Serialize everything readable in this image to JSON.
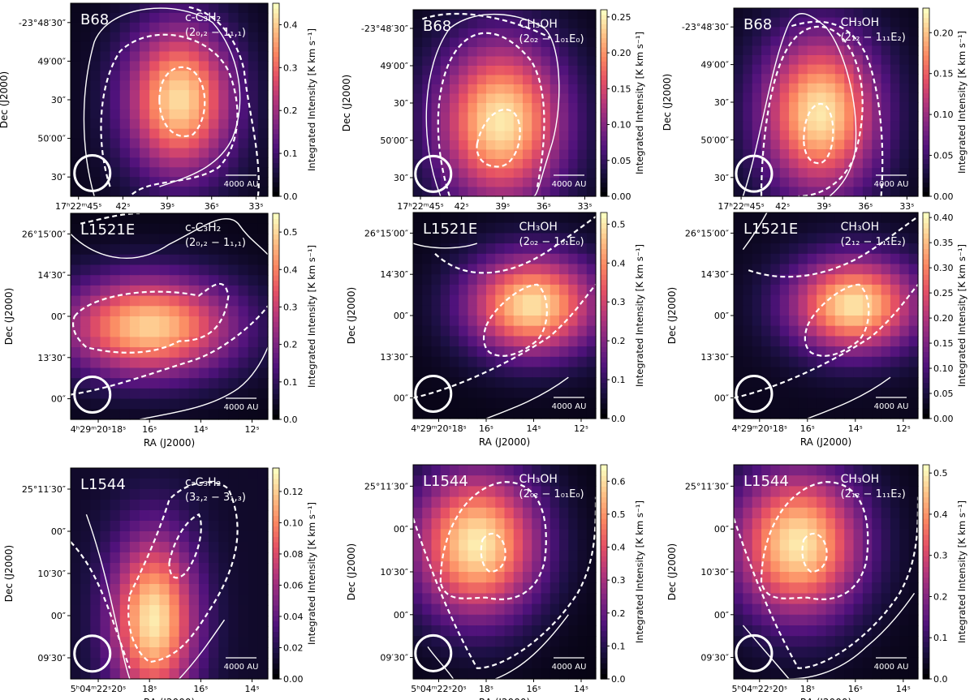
{
  "figure": {
    "description_note": ""
  },
  "colorbar_label": "Integrated Intensity [K km s⁻¹]",
  "xlabel": "RA (J2000)",
  "ylabel": "Dec (J2000)",
  "scalebar_label": "4000 AU",
  "colormap": [
    "#000004",
    "#1c1044",
    "#4f127b",
    "#812581",
    "#b5367a",
    "#e55064",
    "#fb8761",
    "#fec287",
    "#fcfdbf"
  ],
  "chart_data": [
    {
      "type": "heatmap",
      "row": 0,
      "col": 0,
      "source": "B68",
      "line_name": "c-C₃H₂",
      "transition": "(2₀,₂ − 1₁,₁)",
      "cbar_ticks": [
        "0.0",
        "0.1",
        "0.2",
        "0.3",
        "0.4"
      ],
      "vmin": 0.0,
      "vmax": 0.45,
      "xticks": [
        "17ʰ22ᵐ45ˢ",
        "42ˢ",
        "39ˢ",
        "36ˢ",
        "33ˢ"
      ],
      "yticks": [
        "-23°48′30″",
        "49′00″",
        "30″",
        "50′00″",
        "30″"
      ],
      "peak": [
        0.55,
        0.5
      ],
      "sigma": [
        0.19,
        0.27
      ],
      "peak_value": 0.42,
      "floor": 0.02
    },
    {
      "type": "heatmap",
      "row": 0,
      "col": 1,
      "source": "B68",
      "line_name": "CH₃OH",
      "transition": "(2₀₂ − 1₀₁E₀)",
      "cbar_ticks": [
        "0.00",
        "0.05",
        "0.10",
        "0.15",
        "0.20",
        "0.25"
      ],
      "vmin": 0.0,
      "vmax": 0.26,
      "xticks": [
        "17ʰ22ᵐ45ˢ",
        "42ˢ",
        "39ˢ",
        "36ˢ",
        "33ˢ"
      ],
      "yticks": [
        "-23°48′30″",
        "49′00″",
        "30″",
        "50′00″",
        "30″"
      ],
      "peak": [
        0.48,
        0.6
      ],
      "sigma": [
        0.24,
        0.3
      ],
      "peak_value": 0.25,
      "floor": 0.01
    },
    {
      "type": "heatmap",
      "row": 0,
      "col": 2,
      "source": "B68",
      "line_name": "CH₃OH",
      "transition": "(2₁₂ − 1₁₁E₂)",
      "cbar_ticks": [
        "0.00",
        "0.05",
        "0.10",
        "0.15",
        "0.20"
      ],
      "vmin": 0.0,
      "vmax": 0.23,
      "xticks": [
        "17ʰ22ᵐ45ˢ",
        "42ˢ",
        "39ˢ",
        "36ˢ",
        "33ˢ"
      ],
      "yticks": [
        "-23°48′30″",
        "49′00″",
        "30″",
        "50′00″",
        "30″"
      ],
      "peak": [
        0.47,
        0.56
      ],
      "sigma": [
        0.22,
        0.29
      ],
      "peak_value": 0.22,
      "floor": 0.01
    },
    {
      "type": "heatmap",
      "row": 1,
      "col": 0,
      "source": "L1521E",
      "line_name": "c-C₃H₂",
      "transition": "(2₀,₂ − 1₁,₁)",
      "cbar_ticks": [
        "0.0",
        "0.1",
        "0.2",
        "0.3",
        "0.4",
        "0.5"
      ],
      "vmin": 0.0,
      "vmax": 0.55,
      "xticks": [
        "4ʰ29ᵐ20ˢ18ˢ",
        "16ˢ",
        "14ˢ",
        "12ˢ"
      ],
      "yticks": [
        "26°15′00″",
        "14′30″",
        "00″",
        "13′30″",
        "00″"
      ],
      "peak": [
        0.4,
        0.55
      ],
      "sigma": [
        0.3,
        0.17
      ],
      "peak_value": 0.5,
      "floor": 0.02
    },
    {
      "type": "heatmap",
      "row": 1,
      "col": 1,
      "source": "L1521E",
      "line_name": "CH₃OH",
      "transition": "(2₀₂ − 1₀₁E₀)",
      "cbar_ticks": [
        "0.0",
        "0.1",
        "0.2",
        "0.3",
        "0.4",
        "0.5"
      ],
      "vmin": 0.0,
      "vmax": 0.53,
      "xticks": [
        "4ʰ29ᵐ20ˢ18ˢ",
        "16ˢ",
        "14ˢ",
        "12ˢ"
      ],
      "yticks": [
        "26°15′00″",
        "14′30″",
        "00″",
        "13′30″",
        "00″"
      ],
      "peak": [
        0.65,
        0.45
      ],
      "sigma": [
        0.25,
        0.17
      ],
      "peak_value": 0.5,
      "floor": 0.02
    },
    {
      "type": "heatmap",
      "row": 1,
      "col": 2,
      "source": "L1521E",
      "line_name": "CH₃OH",
      "transition": "(2₁₂ − 1₁₁E₂)",
      "cbar_ticks": [
        "0.00",
        "0.05",
        "0.10",
        "0.15",
        "0.20",
        "0.25",
        "0.30",
        "0.35",
        "0.40"
      ],
      "vmin": 0.0,
      "vmax": 0.41,
      "xticks": [
        "4ʰ29ᵐ20ˢ18ˢ",
        "16ˢ",
        "14ˢ",
        "12ˢ"
      ],
      "yticks": [
        "26°15′00″",
        "14′30″",
        "00″",
        "13′30″",
        "00″"
      ],
      "peak": [
        0.65,
        0.45
      ],
      "sigma": [
        0.24,
        0.16
      ],
      "peak_value": 0.39,
      "floor": 0.02
    },
    {
      "type": "heatmap",
      "row": 2,
      "col": 0,
      "source": "L1544",
      "line_name": "c-C₃H₂",
      "transition": "(3₂,₂ − 3₁,₃)",
      "cbar_ticks": [
        "0.00",
        "0.02",
        "0.04",
        "0.06",
        "0.08",
        "0.10",
        "0.12"
      ],
      "vmin": 0.0,
      "vmax": 0.135,
      "xticks": [
        "5ʰ04ᵐ22ˢ20ˢ",
        "18ˢ",
        "16ˢ",
        "14ˢ"
      ],
      "yticks": [
        "25°11′30″",
        "00″",
        "10′30″",
        "00″",
        "09′30″"
      ],
      "peak": [
        0.42,
        0.72
      ],
      "sigma": [
        0.15,
        0.28
      ],
      "peak_value": 0.13,
      "floor": 0.01
    },
    {
      "type": "heatmap",
      "row": 2,
      "col": 1,
      "source": "L1544",
      "line_name": "CH₃OH",
      "transition": "(2₀₂ − 1₀₁E₀)",
      "cbar_ticks": [
        "0.0",
        "0.1",
        "0.2",
        "0.3",
        "0.4",
        "0.5",
        "0.6"
      ],
      "vmin": 0.0,
      "vmax": 0.65,
      "xticks": [
        "5ʰ04ᵐ22ˢ20ˢ",
        "18ˢ",
        "16ˢ",
        "14ˢ"
      ],
      "yticks": [
        "25°11′30″",
        "00″",
        "10′30″",
        "00″",
        "09′30″"
      ],
      "peak": [
        0.35,
        0.37
      ],
      "sigma": [
        0.24,
        0.24
      ],
      "peak_value": 0.63,
      "floor": 0.02
    },
    {
      "type": "heatmap",
      "row": 2,
      "col": 2,
      "source": "L1544",
      "line_name": "CH₃OH",
      "transition": "(2₁₂ − 1₁₁E₂)",
      "cbar_ticks": [
        "0.0",
        "0.1",
        "0.2",
        "0.3",
        "0.4",
        "0.5"
      ],
      "vmin": 0.0,
      "vmax": 0.52,
      "xticks": [
        "5ʰ04ᵐ22ˢ20ˢ",
        "18ˢ",
        "16ˢ",
        "14ˢ"
      ],
      "yticks": [
        "25°11′30″",
        "00″",
        "10′30″",
        "00″",
        "09′30″"
      ],
      "peak": [
        0.35,
        0.37
      ],
      "sigma": [
        0.24,
        0.24
      ],
      "peak_value": 0.5,
      "floor": 0.02
    }
  ]
}
